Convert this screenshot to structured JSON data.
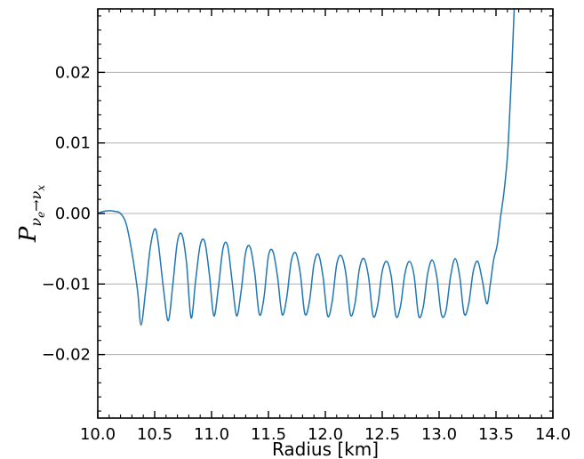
{
  "chart_data": {
    "type": "line",
    "title": "",
    "xlabel": "Radius [km]",
    "ylabel": {
      "symbol": "P",
      "subscript_from": "ν",
      "subscript_from_sub": "e",
      "arrow": "→",
      "subscript_to": "ν",
      "subscript_to_sub": "x"
    },
    "xlim": [
      10.0,
      14.0
    ],
    "ylim": [
      -0.029,
      0.029
    ],
    "xticks": [
      "10.0",
      "10.5",
      "11.0",
      "11.5",
      "12.0",
      "12.5",
      "13.0",
      "13.5",
      "14.0"
    ],
    "yticks": [
      "−0.02",
      "−0.01",
      "0.00",
      "0.01",
      "0.02"
    ],
    "grid": "horizontal",
    "line_color": "#1f77b4",
    "series": [
      {
        "x": [
          10.0,
          10.05,
          10.1,
          10.15,
          10.2,
          10.25,
          10.3,
          10.35,
          10.38,
          10.42,
          10.46,
          10.5,
          10.53,
          10.58,
          10.62,
          10.66,
          10.7,
          10.74,
          10.78,
          10.82,
          10.86,
          10.9,
          10.94,
          10.98,
          11.02,
          11.06,
          11.1,
          11.14,
          11.18,
          11.22,
          11.26,
          11.3,
          11.34,
          11.38,
          11.42,
          11.46,
          11.5,
          11.54,
          11.58,
          11.62,
          11.66,
          11.7,
          11.74,
          11.78,
          11.82,
          11.86,
          11.9,
          11.94,
          11.98,
          12.02,
          12.06,
          12.1,
          12.14,
          12.18,
          12.22,
          12.26,
          12.3,
          12.34,
          12.38,
          12.42,
          12.46,
          12.5,
          12.54,
          12.58,
          12.62,
          12.66,
          12.7,
          12.74,
          12.78,
          12.82,
          12.86,
          12.9,
          12.94,
          12.98,
          13.02,
          13.06,
          13.1,
          13.14,
          13.18,
          13.22,
          13.26,
          13.3,
          13.34,
          13.38,
          13.42,
          13.45,
          13.48,
          13.51,
          13.54,
          13.57,
          13.6,
          13.62,
          13.64,
          13.66
        ],
        "y": [
          0.0,
          0.0003,
          0.0004,
          0.0003,
          0.0,
          -0.0015,
          -0.0055,
          -0.011,
          -0.0158,
          -0.011,
          -0.005,
          -0.0022,
          -0.004,
          -0.011,
          -0.0152,
          -0.01,
          -0.004,
          -0.003,
          -0.007,
          -0.0148,
          -0.0095,
          -0.0045,
          -0.004,
          -0.0085,
          -0.0145,
          -0.0105,
          -0.005,
          -0.0045,
          -0.0095,
          -0.0145,
          -0.011,
          -0.0055,
          -0.0048,
          -0.0085,
          -0.0143,
          -0.012,
          -0.006,
          -0.0054,
          -0.009,
          -0.0143,
          -0.012,
          -0.0068,
          -0.0056,
          -0.0085,
          -0.0142,
          -0.0125,
          -0.0072,
          -0.0058,
          -0.009,
          -0.0145,
          -0.0125,
          -0.0072,
          -0.006,
          -0.0085,
          -0.0143,
          -0.0128,
          -0.0078,
          -0.0064,
          -0.009,
          -0.0145,
          -0.013,
          -0.0082,
          -0.0068,
          -0.009,
          -0.0145,
          -0.0132,
          -0.0085,
          -0.0068,
          -0.0088,
          -0.0145,
          -0.0133,
          -0.0085,
          -0.0066,
          -0.009,
          -0.0143,
          -0.0138,
          -0.009,
          -0.0064,
          -0.0088,
          -0.0142,
          -0.0128,
          -0.0082,
          -0.0068,
          -0.0095,
          -0.0128,
          -0.01,
          -0.0065,
          -0.0045,
          -0.0005,
          0.003,
          0.008,
          0.014,
          0.021,
          0.029
        ]
      }
    ]
  }
}
